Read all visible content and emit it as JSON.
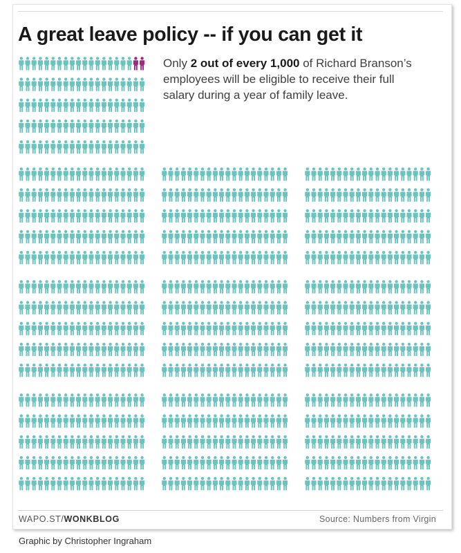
{
  "title": "A great leave policy -- if you can get it",
  "annotation": {
    "prefix": "Only ",
    "bold": "2 out of every 1,000",
    "suffix": " of Richard Branson’s employees will be eligible to receive their full salary during a year of family leave."
  },
  "chart_data": {
    "type": "pictogram",
    "total": 1000,
    "highlighted": 2,
    "blocks": 10,
    "per_block": 100,
    "icon": "person-icon",
    "colors": {
      "base": "#6cc2bd",
      "highlight": "#9b2b7b"
    }
  },
  "footer": {
    "site_prefix": "WAPO.ST/",
    "site_bold": "WONKBLOG",
    "source": "Source: Numbers from Virgin",
    "credit": "Graphic by Christopher Ingraham"
  }
}
